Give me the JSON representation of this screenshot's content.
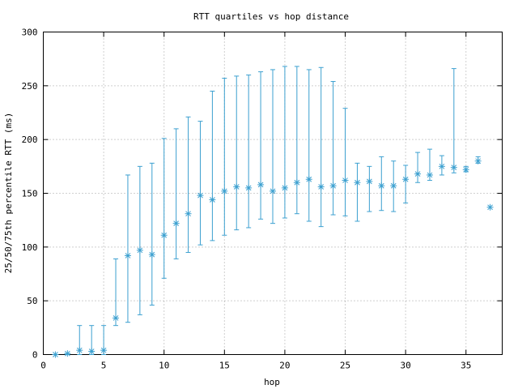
{
  "chart_data": {
    "type": "scatter",
    "title": "RTT quartiles vs hop distance",
    "xlabel": "hop",
    "ylabel": "25/50/75th percentile RTT (ms)",
    "xlim": [
      0,
      38
    ],
    "ylim": [
      0,
      300
    ],
    "xticks": [
      "0",
      "5",
      "10",
      "15",
      "20",
      "25",
      "30",
      "35"
    ],
    "yticks": [
      "0",
      "50",
      "100",
      "150",
      "200",
      "250",
      "300"
    ],
    "grid": true,
    "legend": "none",
    "color": "#3ca0d0",
    "points": [
      {
        "x": 1,
        "p25": 0,
        "median": 0,
        "p75": 0
      },
      {
        "x": 2,
        "p25": 0,
        "median": 1,
        "p75": 1
      },
      {
        "x": 3,
        "p25": 0,
        "median": 4,
        "p75": 27
      },
      {
        "x": 4,
        "p25": 0,
        "median": 3,
        "p75": 27
      },
      {
        "x": 5,
        "p25": 0,
        "median": 4,
        "p75": 27
      },
      {
        "x": 6,
        "p25": 27,
        "median": 34,
        "p75": 89
      },
      {
        "x": 7,
        "p25": 30,
        "median": 92,
        "p75": 167
      },
      {
        "x": 8,
        "p25": 37,
        "median": 97,
        "p75": 175
      },
      {
        "x": 9,
        "p25": 46,
        "median": 93,
        "p75": 178
      },
      {
        "x": 10,
        "p25": 71,
        "median": 111,
        "p75": 201
      },
      {
        "x": 11,
        "p25": 89,
        "median": 122,
        "p75": 210
      },
      {
        "x": 12,
        "p25": 95,
        "median": 131,
        "p75": 221
      },
      {
        "x": 13,
        "p25": 102,
        "median": 148,
        "p75": 217
      },
      {
        "x": 14,
        "p25": 106,
        "median": 144,
        "p75": 245
      },
      {
        "x": 15,
        "p25": 111,
        "median": 152,
        "p75": 257
      },
      {
        "x": 16,
        "p25": 116,
        "median": 156,
        "p75": 259
      },
      {
        "x": 17,
        "p25": 118,
        "median": 155,
        "p75": 260
      },
      {
        "x": 18,
        "p25": 126,
        "median": 158,
        "p75": 263
      },
      {
        "x": 19,
        "p25": 122,
        "median": 152,
        "p75": 265
      },
      {
        "x": 20,
        "p25": 127,
        "median": 155,
        "p75": 268
      },
      {
        "x": 21,
        "p25": 131,
        "median": 160,
        "p75": 268
      },
      {
        "x": 22,
        "p25": 124,
        "median": 163,
        "p75": 265
      },
      {
        "x": 23,
        "p25": 119,
        "median": 156,
        "p75": 267
      },
      {
        "x": 24,
        "p25": 130,
        "median": 157,
        "p75": 254
      },
      {
        "x": 25,
        "p25": 129,
        "median": 162,
        "p75": 229
      },
      {
        "x": 26,
        "p25": 124,
        "median": 160,
        "p75": 178
      },
      {
        "x": 27,
        "p25": 133,
        "median": 161,
        "p75": 175
      },
      {
        "x": 28,
        "p25": 134,
        "median": 157,
        "p75": 184
      },
      {
        "x": 29,
        "p25": 133,
        "median": 157,
        "p75": 180
      },
      {
        "x": 30,
        "p25": 141,
        "median": 163,
        "p75": 176
      },
      {
        "x": 31,
        "p25": 160,
        "median": 168,
        "p75": 188
      },
      {
        "x": 32,
        "p25": 162,
        "median": 167,
        "p75": 191
      },
      {
        "x": 33,
        "p25": 167,
        "median": 175,
        "p75": 185
      },
      {
        "x": 34,
        "p25": 169,
        "median": 174,
        "p75": 266
      },
      {
        "x": 35,
        "p25": 170,
        "median": 172,
        "p75": 175
      },
      {
        "x": 36,
        "p25": 178,
        "median": 180,
        "p75": 184
      },
      {
        "x": 37,
        "p25": 137,
        "median": 137,
        "p75": 137
      }
    ]
  }
}
